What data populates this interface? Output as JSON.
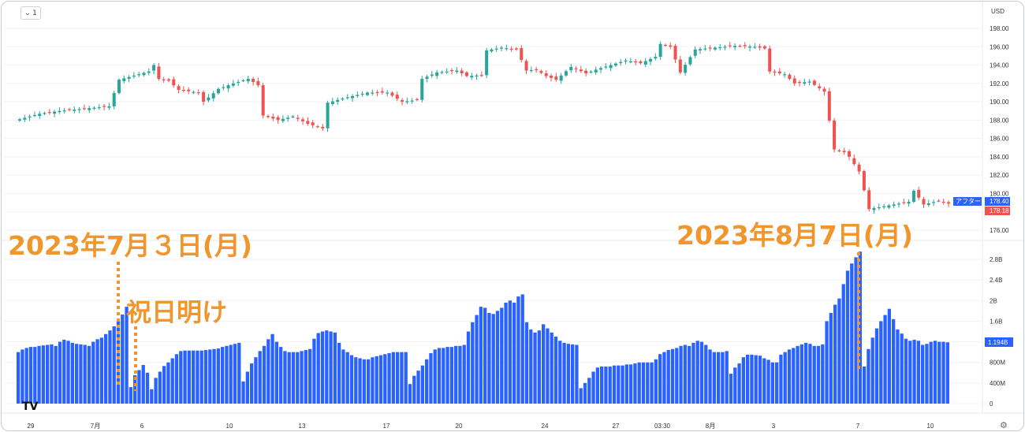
{
  "toolbar": {
    "interval_label": "1",
    "currency": "USD"
  },
  "annotations": {
    "july3": "2023年7月３日(月)",
    "holiday": "祝日明け",
    "aug7": "2023年8月7日(月)"
  },
  "logo": "TV",
  "settings_icon": "⚙",
  "colors": {
    "up": "#26a69a",
    "down": "#ef5350",
    "volume": "#2962ff",
    "annotation": "#f0962d",
    "grid": "#f0f3fa"
  },
  "chart_data": [
    {
      "type": "candlestick",
      "ylim": [
        175,
        199
      ],
      "y_ticks": [
        "198.00",
        "196.00",
        "194.00",
        "192.00",
        "190.00",
        "188.00",
        "186.00",
        "184.00",
        "182.00",
        "180.00",
        "178.00",
        "176.00"
      ],
      "x_tick_labels": [
        "29",
        "7月",
        "6",
        "10",
        "13",
        "17",
        "20",
        "24",
        "27",
        "03:30",
        "8月",
        "3",
        "7",
        "10"
      ],
      "badges": [
        {
          "label": "アフター",
          "value": "178.40",
          "color": "#2962ff"
        },
        {
          "value": "178.18",
          "color": "#ef5350"
        }
      ],
      "close_path": [
        [
          0,
          188.1
        ],
        [
          4,
          188.7
        ],
        [
          8,
          189.0
        ],
        [
          12,
          189.2
        ],
        [
          16,
          189.4
        ],
        [
          18,
          189.5
        ],
        [
          20,
          192.4
        ],
        [
          22,
          192.7
        ],
        [
          26,
          193.3
        ],
        [
          27,
          194.0
        ],
        [
          28,
          192.5
        ],
        [
          30,
          192.3
        ],
        [
          32,
          191.3
        ],
        [
          36,
          191.0
        ],
        [
          37,
          190.0
        ],
        [
          40,
          191.4
        ],
        [
          43,
          192.0
        ],
        [
          46,
          192.5
        ],
        [
          48,
          191.8
        ],
        [
          49,
          188.5
        ],
        [
          52,
          188.0
        ],
        [
          55,
          188.4
        ],
        [
          58,
          187.6
        ],
        [
          61,
          187.1
        ],
        [
          62,
          189.9
        ],
        [
          66,
          190.5
        ],
        [
          70,
          191.0
        ],
        [
          74,
          191.0
        ],
        [
          77,
          190.0
        ],
        [
          80,
          190.2
        ],
        [
          81,
          192.5
        ],
        [
          84,
          193.2
        ],
        [
          88,
          193.4
        ],
        [
          90,
          192.8
        ],
        [
          93,
          192.9
        ],
        [
          94,
          195.6
        ],
        [
          97,
          195.9
        ],
        [
          100,
          195.7
        ],
        [
          102,
          193.4
        ],
        [
          104,
          193.5
        ],
        [
          106,
          192.8
        ],
        [
          108,
          192.4
        ],
        [
          111,
          193.8
        ],
        [
          114,
          193.1
        ],
        [
          116,
          193.5
        ],
        [
          119,
          194.0
        ],
        [
          122,
          194.5
        ],
        [
          125,
          194.2
        ],
        [
          128,
          194.9
        ],
        [
          129,
          196.3
        ],
        [
          131,
          196.0
        ],
        [
          133,
          193.2
        ],
        [
          136,
          195.7
        ],
        [
          140,
          195.9
        ],
        [
          144,
          196.1
        ],
        [
          148,
          196.0
        ],
        [
          150,
          195.8
        ],
        [
          151,
          193.3
        ],
        [
          154,
          193.0
        ],
        [
          156,
          192.0
        ],
        [
          159,
          192.2
        ],
        [
          162,
          191.1
        ],
        [
          164,
          184.8
        ],
        [
          166,
          184.5
        ],
        [
          167,
          184.0
        ],
        [
          169,
          182.4
        ],
        [
          171,
          178.3
        ],
        [
          175,
          178.7
        ],
        [
          179,
          179.1
        ],
        [
          180,
          180.3
        ],
        [
          182,
          178.8
        ],
        [
          185,
          179.2
        ],
        [
          187,
          178.9
        ]
      ],
      "x_start": 0,
      "x_end": 187
    },
    {
      "type": "bar",
      "name": "volume",
      "ylim": [
        0,
        2.94
      ],
      "y_ticks": [
        "2.8B",
        "2.4B",
        "2B",
        "1.6B",
        "1.2B",
        "800M",
        "400M",
        "0"
      ],
      "last_value_badge": "1.194B",
      "values_b": [
        1.0,
        1.05,
        1.08,
        1.1,
        1.1,
        1.12,
        1.13,
        1.14,
        1.15,
        1.12,
        1.2,
        1.24,
        1.22,
        1.18,
        1.16,
        1.15,
        1.14,
        1.12,
        1.2,
        1.25,
        1.28,
        1.35,
        1.42,
        1.5,
        1.6,
        1.73,
        1.88,
        0.32,
        0.55,
        0.65,
        0.75,
        0.6,
        0.28,
        0.5,
        0.62,
        0.73,
        0.8,
        0.88,
        0.96,
        1.02,
        1.03,
        1.03,
        1.03,
        1.03,
        1.03,
        1.04,
        1.05,
        1.06,
        1.07,
        1.1,
        1.12,
        1.14,
        1.16,
        1.18,
        0.43,
        0.62,
        0.78,
        0.9,
        1.02,
        1.12,
        1.25,
        1.35,
        1.2,
        1.1,
        1.02,
        1.0,
        1.0,
        1.0,
        1.02,
        1.04,
        1.06,
        1.26,
        1.37,
        1.4,
        1.42,
        1.4,
        1.38,
        1.18,
        1.05,
        1.0,
        0.94,
        0.9,
        0.88,
        0.86,
        0.86,
        0.9,
        0.92,
        0.94,
        0.96,
        0.98,
        1.0,
        1.0,
        1.0,
        1.0,
        0.38,
        0.54,
        0.64,
        0.74,
        0.86,
        0.98,
        1.05,
        1.08,
        1.08,
        1.1,
        1.1,
        1.12,
        1.12,
        1.14,
        1.4,
        1.58,
        1.72,
        1.88,
        1.86,
        1.76,
        1.74,
        1.8,
        1.86,
        1.96,
        2.0,
        1.96,
        2.08,
        2.12,
        1.58,
        1.44,
        1.38,
        1.42,
        1.54,
        1.46,
        1.38,
        1.3,
        1.22,
        1.18,
        1.16,
        1.15,
        1.14,
        0.3,
        0.4,
        0.5,
        0.62,
        0.7,
        0.72,
        0.72,
        0.72,
        0.74,
        0.74,
        0.74,
        0.76,
        0.76,
        0.78,
        0.8,
        0.8,
        0.8,
        0.8,
        0.86,
        0.96,
        1.0,
        1.04,
        1.06,
        1.08,
        1.12,
        1.14,
        1.12,
        1.18,
        1.22,
        1.2,
        1.14,
        1.05,
        1.0,
        1.0,
        1.0,
        1.02,
        0.58,
        0.7,
        0.78,
        0.9,
        0.95,
        0.95,
        0.94,
        0.93,
        0.88,
        0.85,
        0.8,
        0.8,
        0.95,
        1.0,
        1.05,
        1.08,
        1.12,
        1.15,
        1.18,
        1.16,
        1.12,
        1.12,
        1.15,
        1.6,
        1.76,
        1.92,
        2.04,
        2.32,
        2.58,
        2.72,
        2.84,
        2.95,
        0.72,
        1.06,
        1.28,
        1.46,
        1.6,
        1.72,
        1.84,
        1.64,
        1.44,
        1.36,
        1.26,
        1.22,
        1.24,
        1.22,
        1.14,
        1.16,
        1.2,
        1.22,
        1.2,
        1.2,
        1.19
      ]
    }
  ]
}
